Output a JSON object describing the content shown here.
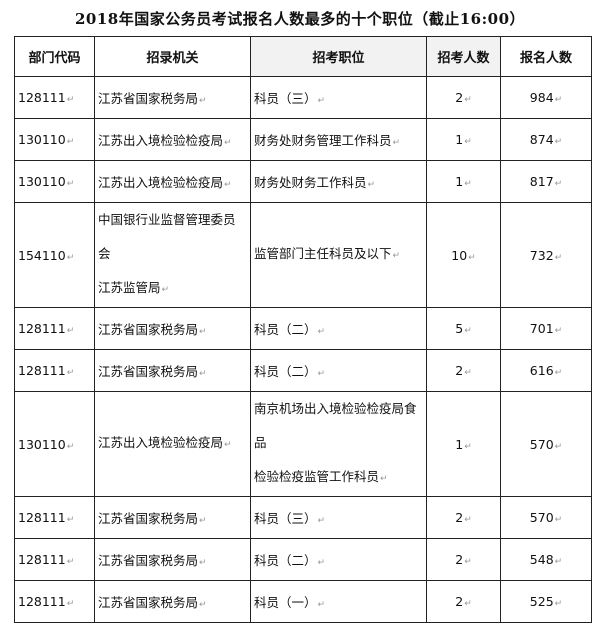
{
  "title": "2018年国家公务员考试报名人数最多的十个职位（截止16:00）",
  "columns": [
    "部门代码",
    "招录机关",
    "招考职位",
    "招考人数",
    "报名人数"
  ],
  "rows": [
    {
      "code": "128111",
      "agency": [
        "江苏省国家税务局"
      ],
      "position": [
        "科员（三）"
      ],
      "quota": "2",
      "applicants": "984"
    },
    {
      "code": "130110",
      "agency": [
        "江苏出入境检验检疫局"
      ],
      "position": [
        "财务处财务管理工作科员"
      ],
      "quota": "1",
      "applicants": "874"
    },
    {
      "code": "130110",
      "agency": [
        "江苏出入境检验检疫局"
      ],
      "position": [
        "财务处财务工作科员"
      ],
      "quota": "1",
      "applicants": "817"
    },
    {
      "code": "154110",
      "agency": [
        "中国银行业监督管理委员会",
        "江苏监管局"
      ],
      "position": [
        "监管部门主任科员及以下"
      ],
      "quota": "10",
      "applicants": "732"
    },
    {
      "code": "128111",
      "agency": [
        "江苏省国家税务局"
      ],
      "position": [
        "科员（二）"
      ],
      "quota": "5",
      "applicants": "701"
    },
    {
      "code": "128111",
      "agency": [
        "江苏省国家税务局"
      ],
      "position": [
        "科员（二）"
      ],
      "quota": "2",
      "applicants": "616"
    },
    {
      "code": "130110",
      "agency": [
        "江苏出入境检验检疫局"
      ],
      "position": [
        "南京机场出入境检验检疫局食品",
        "检验检疫监管工作科员"
      ],
      "quota": "1",
      "applicants": "570"
    },
    {
      "code": "128111",
      "agency": [
        "江苏省国家税务局"
      ],
      "position": [
        "科员（三）"
      ],
      "quota": "2",
      "applicants": "570"
    },
    {
      "code": "128111",
      "agency": [
        "江苏省国家税务局"
      ],
      "position": [
        "科员（二）"
      ],
      "quota": "2",
      "applicants": "548"
    },
    {
      "code": "128111",
      "agency": [
        "江苏省国家税务局"
      ],
      "position": [
        "科员（一）"
      ],
      "quota": "2",
      "applicants": "525"
    }
  ]
}
